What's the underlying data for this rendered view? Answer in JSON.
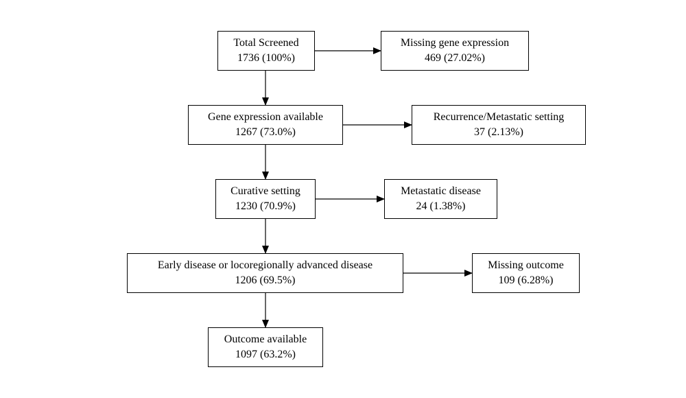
{
  "nodes": {
    "total_screened": {
      "title": "Total Screened",
      "value": "1736 (100%)"
    },
    "missing_gene_expression": {
      "title": "Missing gene expression",
      "value": "469 (27.02%)"
    },
    "gene_expression_available": {
      "title": "Gene expression available",
      "value": "1267 (73.0%)"
    },
    "recurrence_metastatic_setting": {
      "title": "Recurrence/Metastatic setting",
      "value": "37 (2.13%)"
    },
    "curative_setting": {
      "title": "Curative setting",
      "value": "1230 (70.9%)"
    },
    "metastatic_disease": {
      "title": "Metastatic disease",
      "value": "24 (1.38%)"
    },
    "early_or_locoregional_disease": {
      "title": "Early disease or locoregionally advanced disease",
      "value": "1206 (69.5%)"
    },
    "missing_outcome": {
      "title": "Missing outcome",
      "value": "109 (6.28%)"
    },
    "outcome_available": {
      "title": "Outcome available",
      "value": "1097 (63.2%)"
    }
  },
  "edges": [
    {
      "from": "total_screened",
      "to": "gene_expression_available"
    },
    {
      "from": "total_screened",
      "to": "missing_gene_expression"
    },
    {
      "from": "gene_expression_available",
      "to": "curative_setting"
    },
    {
      "from": "gene_expression_available",
      "to": "recurrence_metastatic_setting"
    },
    {
      "from": "curative_setting",
      "to": "early_or_locoregional_disease"
    },
    {
      "from": "curative_setting",
      "to": "metastatic_disease"
    },
    {
      "from": "early_or_locoregional_disease",
      "to": "outcome_available"
    },
    {
      "from": "early_or_locoregional_disease",
      "to": "missing_outcome"
    }
  ]
}
